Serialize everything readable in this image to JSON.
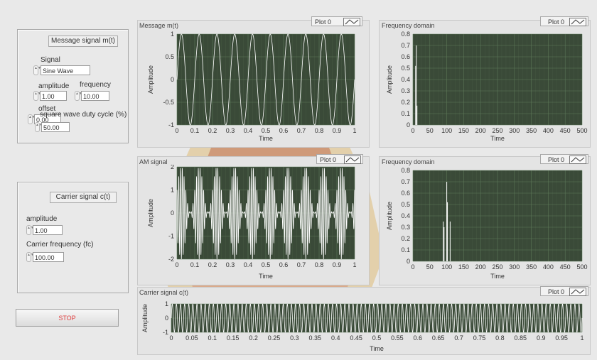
{
  "message_panel": {
    "title": "Message signal  m(t)",
    "signal_label": "Signal",
    "signal_value": "Sine Wave",
    "amplitude_label": "amplitude",
    "amplitude_value": "1.00",
    "frequency_label": "frequency",
    "frequency_value": "10.00",
    "offset_label": "offset",
    "offset_value": "0.00",
    "duty_label": "square wave duty cycle (%)",
    "duty_value": "50.00"
  },
  "carrier_panel": {
    "title": "Carrier signal  c(t)",
    "amplitude_label": "amplitude",
    "amplitude_value": "1.00",
    "fc_label": "Carrier frequency (fc)",
    "fc_value": "100.00"
  },
  "stop_label": "STOP",
  "graphs": {
    "message": {
      "title": "Message m(t)",
      "legend": "Plot 0",
      "xlabel": "Time",
      "ylabel": "Amplitude"
    },
    "freq1": {
      "title": "Frequency domain",
      "legend": "Plot 0",
      "xlabel": "Time",
      "ylabel": "Amplitude"
    },
    "am": {
      "title": "AM signal",
      "legend": "Plot 0",
      "xlabel": "Time",
      "ylabel": "Amplitude"
    },
    "freq2": {
      "title": "Frequency domain",
      "legend": "Plot 0",
      "xlabel": "Time",
      "ylabel": "Amplitude"
    },
    "carrier": {
      "title": "Carrier signal c(t)",
      "legend": "Plot 0",
      "xlabel": "Time",
      "ylabel": "Amplitude"
    }
  },
  "colors": {
    "plot_bg": "#3a4a38",
    "grid": "#5e7a5a",
    "trace": "#ffffff",
    "stop_text": "#e04040"
  },
  "chart_data": [
    {
      "type": "line",
      "title": "Message m(t)",
      "xlabel": "Time",
      "ylabel": "Amplitude",
      "xlim": [
        0,
        1
      ],
      "ylim": [
        -1,
        1
      ],
      "xticks": [
        "0",
        "0.1",
        "0.2",
        "0.3",
        "0.4",
        "0.5",
        "0.6",
        "0.7",
        "0.8",
        "0.9",
        "1"
      ],
      "yticks": [
        "1",
        "0.5",
        "0",
        "-0.5",
        "-1"
      ],
      "series": [
        {
          "function": "sine",
          "amplitude": 1,
          "frequency": 10,
          "offset": 0
        }
      ],
      "grid": true
    },
    {
      "type": "bar",
      "title": "Frequency domain",
      "xlabel": "Time",
      "ylabel": "Amplitude",
      "xlim": [
        0,
        500
      ],
      "ylim": [
        0,
        0.8
      ],
      "xticks": [
        "0",
        "50",
        "100",
        "150",
        "200",
        "250",
        "300",
        "350",
        "400",
        "450",
        "500"
      ],
      "yticks": [
        "0.8",
        "0.7",
        "0.6",
        "0.5",
        "0.4",
        "0.3",
        "0.2",
        "0.1",
        "0"
      ],
      "x": [
        8,
        10,
        12
      ],
      "values": [
        0.52,
        0.7,
        0.17
      ],
      "grid": true
    },
    {
      "type": "line",
      "title": "AM signal",
      "xlabel": "Time",
      "ylabel": "Amplitude",
      "xlim": [
        0,
        1
      ],
      "ylim": [
        -2,
        2
      ],
      "xticks": [
        "0",
        "0.1",
        "0.2",
        "0.3",
        "0.4",
        "0.5",
        "0.6",
        "0.7",
        "0.8",
        "0.9",
        "1"
      ],
      "yticks": [
        "2",
        "1",
        "0",
        "-1",
        "-2"
      ],
      "series": [
        {
          "function": "am",
          "message_frequency": 10,
          "carrier_frequency": 100,
          "carrier_amplitude": 1
        }
      ],
      "grid": true
    },
    {
      "type": "bar",
      "title": "Frequency domain",
      "xlabel": "Time",
      "ylabel": "Amplitude",
      "xlim": [
        0,
        500
      ],
      "ylim": [
        0,
        0.8
      ],
      "xticks": [
        "0",
        "50",
        "100",
        "150",
        "200",
        "250",
        "300",
        "350",
        "400",
        "450",
        "500"
      ],
      "yticks": [
        "0.8",
        "0.7",
        "0.6",
        "0.5",
        "0.4",
        "0.3",
        "0.2",
        "0.1",
        "0"
      ],
      "x": [
        90,
        92,
        100,
        102,
        110
      ],
      "values": [
        0.35,
        0.3,
        0.7,
        0.52,
        0.35
      ],
      "grid": true
    },
    {
      "type": "line",
      "title": "Carrier signal c(t)",
      "xlabel": "Time",
      "ylabel": "Amplitude",
      "xlim": [
        0,
        1
      ],
      "ylim": [
        -1,
        1
      ],
      "xticks": [
        "0",
        "0.05",
        "0.1",
        "0.15",
        "0.2",
        "0.25",
        "0.3",
        "0.35",
        "0.4",
        "0.45",
        "0.5",
        "0.55",
        "0.6",
        "0.65",
        "0.7",
        "0.75",
        "0.8",
        "0.85",
        "0.9",
        "0.95",
        "1"
      ],
      "yticks": [
        "1",
        "0",
        "-1"
      ],
      "series": [
        {
          "function": "sine",
          "amplitude": 1,
          "frequency": 100
        }
      ],
      "grid": true
    }
  ]
}
